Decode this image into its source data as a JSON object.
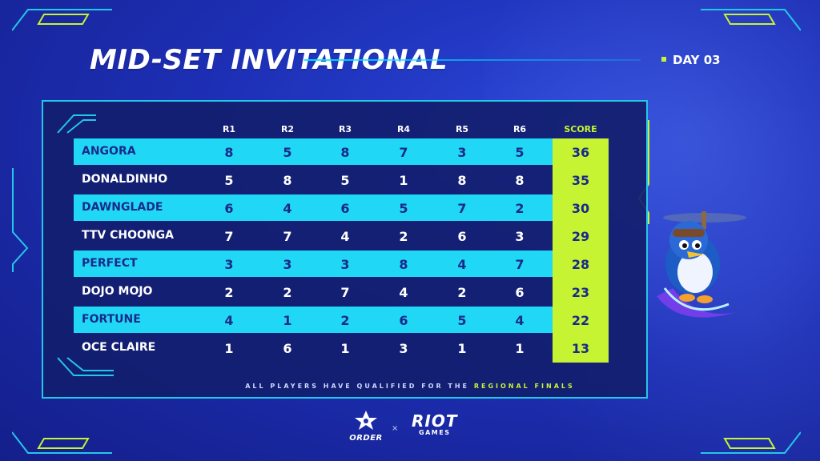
{
  "header": {
    "title": "MID-SET INVITATIONAL",
    "day": "DAY 03"
  },
  "table": {
    "columns": [
      "R1",
      "R2",
      "R3",
      "R4",
      "R5",
      "R6"
    ],
    "score_header": "SCORE",
    "rows": [
      {
        "name": "ANGORA",
        "r": [
          "8",
          "5",
          "8",
          "7",
          "3",
          "5"
        ],
        "score": "36"
      },
      {
        "name": "DONALDINHO",
        "r": [
          "5",
          "8",
          "5",
          "1",
          "8",
          "8"
        ],
        "score": "35"
      },
      {
        "name": "DAWNGLADE",
        "r": [
          "6",
          "4",
          "6",
          "5",
          "7",
          "2"
        ],
        "score": "30"
      },
      {
        "name": "TTV CHOONGA",
        "r": [
          "7",
          "7",
          "4",
          "2",
          "6",
          "3"
        ],
        "score": "29"
      },
      {
        "name": "PERFECT",
        "r": [
          "3",
          "3",
          "3",
          "8",
          "4",
          "7"
        ],
        "score": "28"
      },
      {
        "name": "DOJO MOJO",
        "r": [
          "2",
          "2",
          "7",
          "4",
          "2",
          "6"
        ],
        "score": "23"
      },
      {
        "name": "FORTUNE",
        "r": [
          "4",
          "1",
          "2",
          "6",
          "5",
          "4"
        ],
        "score": "22"
      },
      {
        "name": "OCE CLAIRE",
        "r": [
          "1",
          "6",
          "1",
          "3",
          "1",
          "1"
        ],
        "score": "13"
      }
    ]
  },
  "footer": {
    "note_prefix": "ALL PLAYERS HAVE QUALIFIED FOR THE ",
    "note_highlight": "REGIONAL FINALS",
    "order_label": "ORDER",
    "times": "×",
    "riot_line1": "RIOT",
    "riot_line2": "GAMES"
  },
  "colors": {
    "accent_cyan": "#20d8f6",
    "accent_lime": "#c6f432",
    "background": "#1d2fb5"
  }
}
